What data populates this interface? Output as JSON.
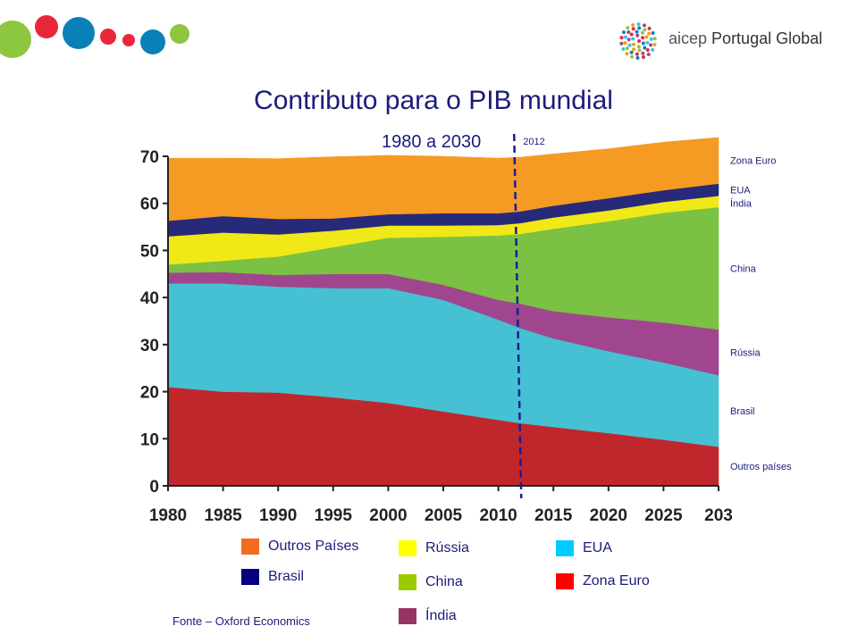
{
  "branding": {
    "logo_text_regular": "aicep ",
    "logo_text_bold": "Portugal Global"
  },
  "chart_data": {
    "type": "area",
    "stacked": true,
    "title": "Contributo para o PIB mundial",
    "subtitle": "1980 a 2030",
    "xlabel": "",
    "ylabel": "",
    "xlim": [
      1980,
      2030
    ],
    "ylim": [
      0,
      70
    ],
    "x_ticks": [
      "1980",
      "1985",
      "1990",
      "1995",
      "2000",
      "2005",
      "2010",
      "2015",
      "2020",
      "2025",
      "203"
    ],
    "y_ticks": [
      "0",
      "10",
      "20",
      "30",
      "40",
      "50",
      "60",
      "70"
    ],
    "marker": {
      "x": 2012,
      "label": "2012"
    },
    "x": [
      1980,
      1985,
      1990,
      1995,
      2000,
      2005,
      2010,
      2012,
      2015,
      2020,
      2025,
      2030
    ],
    "series": [
      {
        "name": "Zona Euro",
        "color": "#c0272d",
        "values": [
          21,
          20,
          19.8,
          18.8,
          17.6,
          15.8,
          14,
          13.3,
          12.5,
          11.2,
          9.8,
          8.3
        ]
      },
      {
        "name": "EUA",
        "color": "#45c1d3",
        "values": [
          22,
          23,
          22.5,
          23.2,
          24.4,
          23.7,
          21.3,
          20.2,
          18.8,
          17.4,
          16.4,
          15.2
        ]
      },
      {
        "name": "Índia",
        "color": "#a0468e",
        "values": [
          2.3,
          2.4,
          2.5,
          3,
          3,
          3.2,
          4.2,
          5.2,
          5.8,
          7.2,
          8.5,
          9.7
        ]
      },
      {
        "name": "China",
        "color": "#7bc143",
        "values": [
          1.7,
          2.4,
          3.9,
          5.7,
          7.7,
          10.2,
          13.7,
          14.8,
          17.5,
          20.4,
          23.3,
          26
        ]
      },
      {
        "name": "Rússia",
        "color": "#f0e817",
        "values": [
          6,
          6,
          4.7,
          3.5,
          2.6,
          2.4,
          2.2,
          2.3,
          2.4,
          2.3,
          2.3,
          2.4
        ]
      },
      {
        "name": "Brasil",
        "color": "#272a78",
        "values": [
          3.3,
          3.5,
          3.3,
          2.6,
          2.4,
          2.6,
          2.5,
          2.5,
          2.5,
          2.6,
          2.5,
          2.6
        ]
      },
      {
        "name": "Outros países",
        "color": "#f59a23",
        "values": [
          13.3,
          12.3,
          12.8,
          13.1,
          12.5,
          12.1,
          11.7,
          11.5,
          11,
          10.5,
          10.2,
          9.8
        ]
      }
    ],
    "right_labels": [
      "Outros países",
      "Brasil",
      "Rússia",
      "China",
      "Índia",
      "EUA",
      "Zona Euro"
    ]
  },
  "legend": [
    {
      "label": "Outros Países",
      "color": "#f26b21"
    },
    {
      "label": "Brasil",
      "color": "#000080"
    },
    {
      "label": "Rússia",
      "color": "#ffff00"
    },
    {
      "label": "China",
      "color": "#99cc00"
    },
    {
      "label": "Índia",
      "color": "#993366"
    },
    {
      "label": "EUA",
      "color": "#00ccff"
    },
    {
      "label": "Zona Euro",
      "color": "#ff0000"
    }
  ],
  "source": "Fonte – Oxford Economics"
}
